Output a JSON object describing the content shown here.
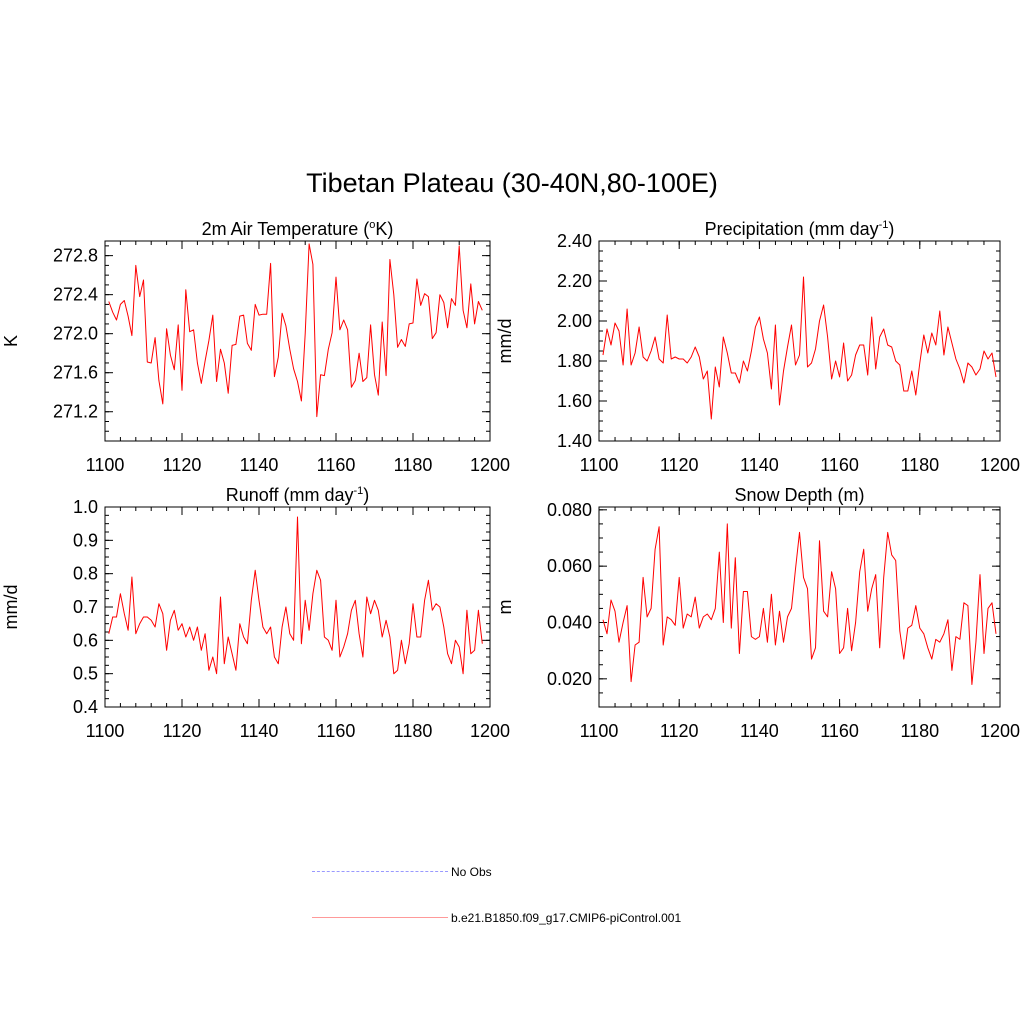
{
  "title": "Tibetan Plateau (30-40N,80-100E)",
  "chart_data": [
    {
      "type": "line",
      "title": "2m Air Temperature (",
      "title_sup": "o",
      "title_after": "K)",
      "xlabel": "",
      "ylabel": "K",
      "xlim": [
        1100,
        1200
      ],
      "ylim": [
        270.9,
        272.95
      ],
      "xticks": [
        1100,
        1120,
        1140,
        1160,
        1180,
        1200
      ],
      "xtick_labels": [
        "1100",
        "1120",
        "1140",
        "1160",
        "1180",
        "1200"
      ],
      "yticks": [
        271.2,
        271.6,
        272.0,
        272.4,
        272.8
      ],
      "ytick_labels": [
        "271.2",
        "271.6",
        "272.0",
        "272.4",
        "272.8"
      ],
      "x_start": 1101,
      "series": [
        {
          "name": "b.e21.B1850.f09_g17.CMIP6-piControl.001",
          "color": "#ff0000",
          "values": [
            272.33,
            272.22,
            272.14,
            272.3,
            272.34,
            272.18,
            271.98,
            272.7,
            272.38,
            272.55,
            271.71,
            271.7,
            271.96,
            271.52,
            271.28,
            272.05,
            271.78,
            271.63,
            272.09,
            271.42,
            272.45,
            272.02,
            272.04,
            271.7,
            271.49,
            271.72,
            271.93,
            272.19,
            271.51,
            271.84,
            271.7,
            271.39,
            271.88,
            271.89,
            272.18,
            272.19,
            271.9,
            271.83,
            272.3,
            272.19,
            272.2,
            272.2,
            272.72,
            271.56,
            271.76,
            272.21,
            272.08,
            271.84,
            271.64,
            271.51,
            271.31,
            272.0,
            272.92,
            272.71,
            271.15,
            271.58,
            271.57,
            271.84,
            272.01,
            272.58,
            272.04,
            272.14,
            272.04,
            271.45,
            271.52,
            271.8,
            271.51,
            271.55,
            272.09,
            271.58,
            271.37,
            272.12,
            271.57,
            272.76,
            272.4,
            271.86,
            271.94,
            271.87,
            272.1,
            272.11,
            272.56,
            272.29,
            272.41,
            272.38,
            271.95,
            272.01,
            272.4,
            272.32,
            272.06,
            272.36,
            272.29,
            272.9,
            272.24,
            272.06,
            272.51,
            272.1,
            272.33,
            272.24
          ]
        }
      ]
    },
    {
      "type": "line",
      "title": "Precipitation (mm day",
      "title_sup": "-1",
      "title_after": ")",
      "xlabel": "",
      "ylabel": "mm/d",
      "xlim": [
        1100,
        1200
      ],
      "ylim": [
        1.4,
        2.4
      ],
      "xticks": [
        1100,
        1120,
        1140,
        1160,
        1180,
        1200
      ],
      "xtick_labels": [
        "1100",
        "1120",
        "1140",
        "1160",
        "1180",
        "1200"
      ],
      "yticks": [
        1.4,
        1.6,
        1.8,
        2.0,
        2.2,
        2.4
      ],
      "ytick_labels": [
        "1.40",
        "1.60",
        "1.80",
        "2.00",
        "2.20",
        "2.40"
      ],
      "x_start": 1101,
      "series": [
        {
          "name": "b.e21.B1850.f09_g17.CMIP6-piControl.001",
          "color": "#ff0000",
          "values": [
            1.83,
            1.96,
            1.88,
            1.99,
            1.95,
            1.78,
            2.06,
            1.78,
            1.84,
            1.97,
            1.82,
            1.8,
            1.85,
            1.92,
            1.81,
            1.79,
            2.03,
            1.81,
            1.82,
            1.81,
            1.81,
            1.79,
            1.82,
            1.87,
            1.82,
            1.71,
            1.75,
            1.51,
            1.77,
            1.67,
            1.92,
            1.84,
            1.74,
            1.74,
            1.69,
            1.8,
            1.75,
            1.85,
            1.97,
            2.02,
            1.91,
            1.84,
            1.66,
            1.98,
            1.58,
            1.75,
            1.87,
            1.98,
            1.78,
            1.83,
            2.22,
            1.77,
            1.79,
            1.86,
            2.0,
            2.08,
            1.92,
            1.71,
            1.8,
            1.72,
            1.89,
            1.7,
            1.73,
            1.83,
            1.88,
            1.88,
            1.73,
            2.02,
            1.76,
            1.92,
            1.96,
            1.88,
            1.87,
            1.8,
            1.78,
            1.65,
            1.65,
            1.75,
            1.63,
            1.79,
            1.93,
            1.84,
            1.94,
            1.88,
            2.05,
            1.83,
            1.97,
            1.89,
            1.81,
            1.76,
            1.69,
            1.79,
            1.77,
            1.73,
            1.76,
            1.85,
            1.81,
            1.84,
            1.72
          ]
        }
      ]
    },
    {
      "type": "line",
      "title": "Runoff (mm day",
      "title_sup": "-1",
      "title_after": ")",
      "xlabel": "",
      "ylabel": "mm/d",
      "xlim": [
        1100,
        1200
      ],
      "ylim": [
        0.4,
        1.0
      ],
      "xticks": [
        1100,
        1120,
        1140,
        1160,
        1180,
        1200
      ],
      "xtick_labels": [
        "1100",
        "1120",
        "1140",
        "1160",
        "1180",
        "1200"
      ],
      "yticks": [
        0.4,
        0.5,
        0.6,
        0.7,
        0.8,
        0.9,
        1.0
      ],
      "ytick_labels": [
        "0.4",
        "0.5",
        "0.6",
        "0.7",
        "0.8",
        "0.9",
        "1.0"
      ],
      "x_start": 1101,
      "series": [
        {
          "name": "b.e21.B1850.f09_g17.CMIP6-piControl.001",
          "color": "#ff0000",
          "values": [
            0.62,
            0.67,
            0.67,
            0.74,
            0.68,
            0.63,
            0.79,
            0.62,
            0.65,
            0.67,
            0.67,
            0.66,
            0.64,
            0.71,
            0.68,
            0.57,
            0.66,
            0.69,
            0.63,
            0.65,
            0.61,
            0.64,
            0.6,
            0.64,
            0.57,
            0.62,
            0.51,
            0.55,
            0.5,
            0.73,
            0.53,
            0.61,
            0.56,
            0.51,
            0.65,
            0.61,
            0.59,
            0.72,
            0.81,
            0.72,
            0.64,
            0.62,
            0.64,
            0.55,
            0.53,
            0.64,
            0.7,
            0.62,
            0.6,
            0.97,
            0.59,
            0.72,
            0.63,
            0.74,
            0.81,
            0.78,
            0.61,
            0.6,
            0.57,
            0.72,
            0.55,
            0.58,
            0.62,
            0.69,
            0.72,
            0.62,
            0.55,
            0.73,
            0.68,
            0.72,
            0.69,
            0.61,
            0.66,
            0.61,
            0.5,
            0.51,
            0.6,
            0.53,
            0.59,
            0.71,
            0.61,
            0.61,
            0.72,
            0.78,
            0.69,
            0.71,
            0.7,
            0.64,
            0.56,
            0.53,
            0.6,
            0.58,
            0.5,
            0.69,
            0.56,
            0.57,
            0.69,
            0.59
          ]
        }
      ]
    },
    {
      "type": "line",
      "title": "Snow Depth (m)",
      "title_sup": "",
      "title_after": "",
      "xlabel": "",
      "ylabel": "m",
      "xlim": [
        1100,
        1200
      ],
      "ylim": [
        0.01,
        0.081
      ],
      "xticks": [
        1100,
        1120,
        1140,
        1160,
        1180,
        1200
      ],
      "xtick_labels": [
        "1100",
        "1120",
        "1140",
        "1160",
        "1180",
        "1200"
      ],
      "yticks": [
        0.02,
        0.04,
        0.06,
        0.08
      ],
      "ytick_labels": [
        "0.020",
        "0.040",
        "0.060",
        "0.080"
      ],
      "x_start": 1101,
      "series": [
        {
          "name": "b.e21.B1850.f09_g17.CMIP6-piControl.001",
          "color": "#ff0000",
          "values": [
            0.041,
            0.036,
            0.048,
            0.044,
            0.033,
            0.04,
            0.046,
            0.019,
            0.032,
            0.033,
            0.056,
            0.042,
            0.045,
            0.066,
            0.074,
            0.032,
            0.042,
            0.041,
            0.039,
            0.056,
            0.038,
            0.043,
            0.042,
            0.049,
            0.038,
            0.042,
            0.043,
            0.041,
            0.045,
            0.065,
            0.04,
            0.075,
            0.038,
            0.063,
            0.029,
            0.051,
            0.051,
            0.035,
            0.034,
            0.035,
            0.045,
            0.033,
            0.05,
            0.032,
            0.044,
            0.033,
            0.042,
            0.045,
            0.059,
            0.072,
            0.056,
            0.052,
            0.027,
            0.031,
            0.069,
            0.044,
            0.042,
            0.058,
            0.052,
            0.029,
            0.031,
            0.045,
            0.03,
            0.04,
            0.058,
            0.066,
            0.044,
            0.052,
            0.057,
            0.031,
            0.056,
            0.072,
            0.064,
            0.062,
            0.037,
            0.027,
            0.038,
            0.039,
            0.046,
            0.038,
            0.036,
            0.031,
            0.027,
            0.034,
            0.033,
            0.036,
            0.041,
            0.023,
            0.035,
            0.034,
            0.047,
            0.046,
            0.018,
            0.033,
            0.057,
            0.029,
            0.045,
            0.047,
            0.036
          ]
        }
      ]
    }
  ],
  "legend": [
    {
      "label": "No Obs",
      "color": "#9999ff",
      "style": "dashed"
    },
    {
      "label": "b.e21.B1850.f09_g17.CMIP6-piControl.001",
      "color": "#ff9999",
      "style": "solid"
    }
  ]
}
